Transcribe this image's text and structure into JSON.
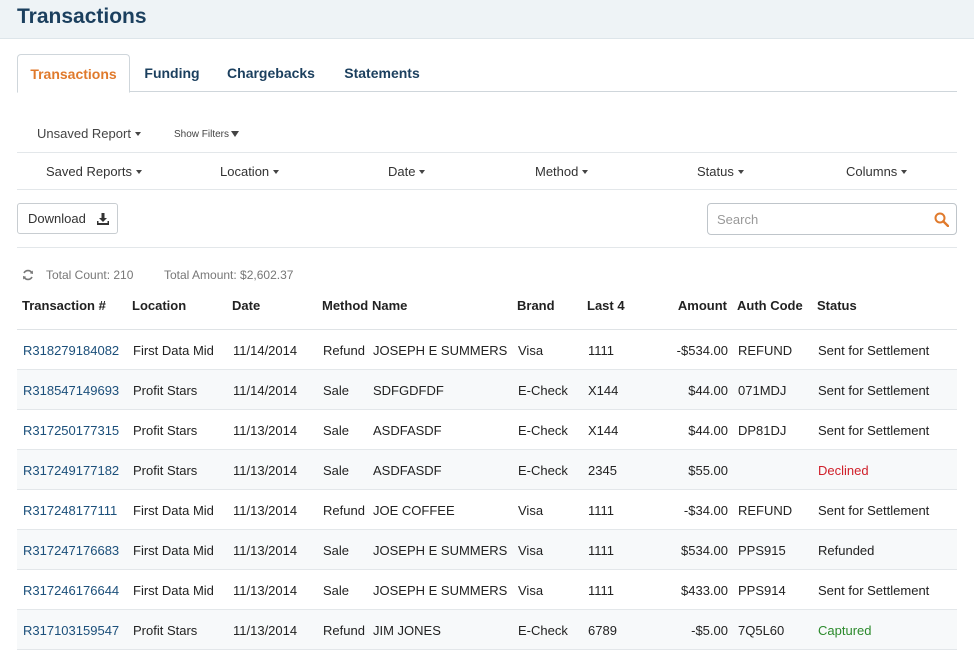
{
  "header": {
    "title": "Transactions"
  },
  "tabs": [
    {
      "label": "Transactions",
      "active": true
    },
    {
      "label": "Funding"
    },
    {
      "label": "Chargebacks"
    },
    {
      "label": "Statements"
    }
  ],
  "toolbar": {
    "unsaved_report": "Unsaved Report",
    "show_filters": "Show Filters",
    "download": "Download"
  },
  "filters": [
    {
      "label": "Saved Reports"
    },
    {
      "label": "Location"
    },
    {
      "label": "Date"
    },
    {
      "label": "Method"
    },
    {
      "label": "Status"
    },
    {
      "label": "Columns"
    }
  ],
  "search": {
    "placeholder": "Search",
    "value": ""
  },
  "summary": {
    "total_count": "Total Count: 210",
    "total_amount": "Total Amount: $2,602.37"
  },
  "table": {
    "columns": [
      "Transaction #",
      "Location",
      "Date",
      "Method",
      "Name",
      "Brand",
      "Last 4",
      "Amount",
      "Auth Code",
      "Status"
    ],
    "rows": [
      {
        "id": "R318279184082",
        "location": "First Data Mid",
        "date": "11/14/2014",
        "method": "Refund",
        "name": "JOSEPH E SUMMERS",
        "brand": "Visa",
        "last4": "1111",
        "amount": "-$534.00",
        "auth": "REFUND",
        "status": "Sent for Settlement",
        "status_type": "normal"
      },
      {
        "id": "R318547149693",
        "location": "Profit Stars",
        "date": "11/14/2014",
        "method": "Sale",
        "name": "SDFGDFDF",
        "brand": "E-Check",
        "last4": "X144",
        "amount": "$44.00",
        "auth": "071MDJ",
        "status": "Sent for Settlement",
        "status_type": "normal"
      },
      {
        "id": "R317250177315",
        "location": "Profit Stars",
        "date": "11/13/2014",
        "method": "Sale",
        "name": "ASDFASDF",
        "brand": "E-Check",
        "last4": "X144",
        "amount": "$44.00",
        "auth": "DP81DJ",
        "status": "Sent for Settlement",
        "status_type": "normal"
      },
      {
        "id": "R317249177182",
        "location": "Profit Stars",
        "date": "11/13/2014",
        "method": "Sale",
        "name": "ASDFASDF",
        "brand": "E-Check",
        "last4": "2345",
        "amount": "$55.00",
        "auth": "",
        "status": "Declined",
        "status_type": "declined"
      },
      {
        "id": "R317248177111",
        "location": "First Data Mid",
        "date": "11/13/2014",
        "method": "Refund",
        "name": "JOE COFFEE",
        "brand": "Visa",
        "last4": "1111",
        "amount": "-$34.00",
        "auth": "REFUND",
        "status": "Sent for Settlement",
        "status_type": "normal"
      },
      {
        "id": "R317247176683",
        "location": "First Data Mid",
        "date": "11/13/2014",
        "method": "Sale",
        "name": "JOSEPH E SUMMERS",
        "brand": "Visa",
        "last4": "1111",
        "amount": "$534.00",
        "auth": "PPS915",
        "status": "Refunded",
        "status_type": "normal"
      },
      {
        "id": "R317246176644",
        "location": "First Data Mid",
        "date": "11/13/2014",
        "method": "Sale",
        "name": "JOSEPH E SUMMERS",
        "brand": "Visa",
        "last4": "1111",
        "amount": "$433.00",
        "auth": "PPS914",
        "status": "Sent for Settlement",
        "status_type": "normal"
      },
      {
        "id": "R317103159547",
        "location": "Profit Stars",
        "date": "11/13/2014",
        "method": "Refund",
        "name": "JIM JONES",
        "brand": "E-Check",
        "last4": "6789",
        "amount": "-$5.00",
        "auth": "7Q5L60",
        "status": "Captured",
        "status_type": "captured"
      }
    ]
  },
  "colors": {
    "accent": "#e07a2c",
    "link": "#1b4f7a",
    "title": "#1b3f5e",
    "declined": "#d0202a",
    "captured": "#2c8a2c"
  },
  "icons": {
    "download": "download-icon",
    "search": "search-icon",
    "refresh": "refresh-icon"
  }
}
